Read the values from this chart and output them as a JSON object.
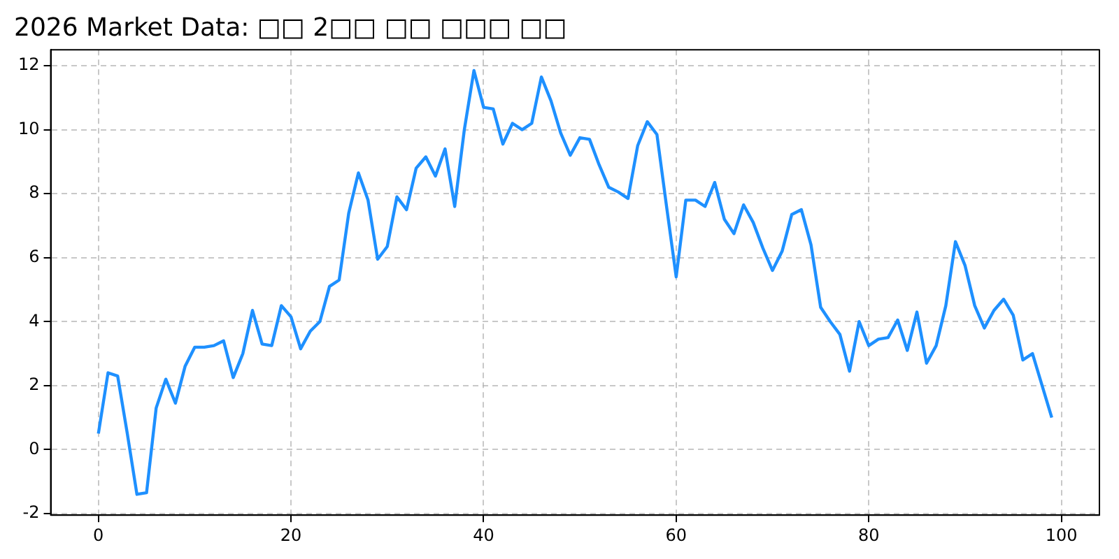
{
  "chart_data": {
    "type": "line",
    "title": "2026 Market Data: □□ 2□□ □□ □□□ □□",
    "x": [
      0,
      1,
      2,
      3,
      4,
      5,
      6,
      7,
      8,
      9,
      10,
      11,
      12,
      13,
      14,
      15,
      16,
      17,
      18,
      19,
      20,
      21,
      22,
      23,
      24,
      25,
      26,
      27,
      28,
      29,
      30,
      31,
      32,
      33,
      34,
      35,
      36,
      37,
      38,
      39,
      40,
      41,
      42,
      43,
      44,
      45,
      46,
      47,
      48,
      49,
      50,
      51,
      52,
      53,
      54,
      55,
      56,
      57,
      58,
      59,
      60,
      61,
      62,
      63,
      64,
      65,
      66,
      67,
      68,
      69,
      70,
      71,
      72,
      73,
      74,
      75,
      76,
      77,
      78,
      79,
      80,
      81,
      82,
      83,
      84,
      85,
      86,
      87,
      88,
      89,
      90,
      91,
      92,
      93,
      94,
      95,
      96,
      97,
      98,
      99
    ],
    "series": [
      {
        "color": "#1e90ff",
        "values": [
          0.5,
          2.4,
          2.3,
          0.5,
          -1.4,
          -1.35,
          1.3,
          2.2,
          1.45,
          2.6,
          3.2,
          3.2,
          3.25,
          3.4,
          2.25,
          3.0,
          4.35,
          3.3,
          3.25,
          4.5,
          4.15,
          3.15,
          3.7,
          4.0,
          5.1,
          5.3,
          7.4,
          8.65,
          7.8,
          5.95,
          6.35,
          7.9,
          7.5,
          8.8,
          9.15,
          8.55,
          9.4,
          7.6,
          10.0,
          11.85,
          10.7,
          10.65,
          9.55,
          10.2,
          10.0,
          10.2,
          11.65,
          10.9,
          9.9,
          9.2,
          9.75,
          9.7,
          8.9,
          8.2,
          8.05,
          7.85,
          9.5,
          10.25,
          9.85,
          7.6,
          5.4,
          7.8,
          7.8,
          7.6,
          8.35,
          7.2,
          6.75,
          7.65,
          7.1,
          6.3,
          5.6,
          6.2,
          7.35,
          7.5,
          6.4,
          4.45,
          4.0,
          3.6,
          2.45,
          4.0,
          3.25,
          3.45,
          3.5,
          4.05,
          3.1,
          4.3,
          2.7,
          3.25,
          4.5,
          6.5,
          5.75,
          4.5,
          3.8,
          4.35,
          4.7,
          4.2,
          2.8,
          3.0,
          2.0,
          1.0
        ]
      }
    ],
    "xlim": [
      -4.95,
      103.95
    ],
    "xticks": [
      0,
      20,
      40,
      60,
      80,
      100
    ],
    "ylim": [
      -2.05,
      12.5
    ],
    "yticks": [
      -2,
      0,
      2,
      4,
      6,
      8,
      10,
      12
    ],
    "grid": true,
    "legend": false,
    "marker": "none",
    "line_style": "solid"
  }
}
